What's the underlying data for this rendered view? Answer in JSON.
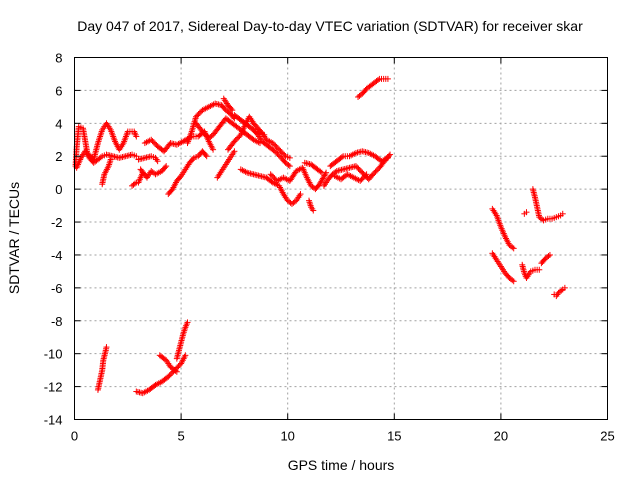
{
  "chart_data": {
    "type": "scatter",
    "title": "Day 047 of 2017, Sidereal Day-to-day VTEC variation (SDTVAR) for receiver skar",
    "xlabel": "GPS time / hours",
    "ylabel": "SDTVAR / TECUs",
    "xlim": [
      0,
      25
    ],
    "ylim": [
      -14,
      8
    ],
    "xticks": [
      "0",
      "5",
      "10",
      "15",
      "20",
      "25"
    ],
    "yticks": [
      "-14",
      "-12",
      "-10",
      "-8",
      "-6",
      "-4",
      "-2",
      "0",
      "2",
      "4",
      "6",
      "8"
    ],
    "grid": true,
    "marker": "+",
    "color": "#ff0000",
    "series": [
      {
        "segments": [
          [
            [
              0.05,
              1.4
            ],
            [
              0.1,
              2.5
            ],
            [
              0.2,
              3.8
            ],
            [
              0.4,
              3.7
            ],
            [
              0.6,
              2.2
            ],
            [
              0.9,
              1.8
            ],
            [
              1.1,
              2.8
            ],
            [
              1.3,
              3.6
            ],
            [
              1.5,
              4.0
            ],
            [
              1.7,
              3.6
            ],
            [
              1.9,
              2.9
            ],
            [
              2.1,
              2.4
            ],
            [
              2.3,
              2.8
            ],
            [
              2.5,
              3.5
            ],
            [
              2.8,
              3.5
            ],
            [
              2.9,
              3.2
            ]
          ],
          [
            [
              0.1,
              1.3
            ],
            [
              0.3,
              1.9
            ],
            [
              0.5,
              2.3
            ],
            [
              0.7,
              1.9
            ],
            [
              0.9,
              1.6
            ],
            [
              1.1,
              1.8
            ],
            [
              1.3,
              2.0
            ],
            [
              1.5,
              2.1
            ],
            [
              1.8,
              2.0
            ],
            [
              2.1,
              1.9
            ],
            [
              2.4,
              2.0
            ],
            [
              2.7,
              2.1
            ],
            [
              2.9,
              2.0
            ]
          ],
          [
            [
              1.3,
              0.3
            ],
            [
              1.4,
              0.9
            ],
            [
              1.6,
              1.4
            ],
            [
              1.7,
              1.8
            ]
          ],
          [
            [
              2.7,
              0.2
            ],
            [
              2.9,
              0.4
            ]
          ],
          [
            [
              3.0,
              1.8
            ],
            [
              3.3,
              1.9
            ],
            [
              3.6,
              2.0
            ],
            [
              3.8,
              1.9
            ],
            [
              3.9,
              1.7
            ]
          ],
          [
            [
              3.1,
              1.2
            ],
            [
              3.4,
              0.7
            ],
            [
              3.6,
              1.1
            ],
            [
              3.8,
              0.9
            ],
            [
              4.1,
              1.1
            ],
            [
              4.3,
              1.4
            ]
          ],
          [
            [
              3.3,
              2.8
            ],
            [
              3.6,
              3.0
            ],
            [
              3.9,
              2.6
            ],
            [
              4.2,
              2.3
            ],
            [
              4.5,
              2.8
            ],
            [
              4.8,
              2.7
            ],
            [
              5.1,
              2.9
            ],
            [
              5.5,
              3.2
            ],
            [
              5.8,
              3.2
            ],
            [
              6.1,
              3.5
            ],
            [
              6.3,
              2.9
            ],
            [
              6.5,
              2.4
            ]
          ],
          [
            [
              3.0,
              0.4
            ],
            [
              3.1,
              0.7
            ],
            [
              3.2,
              1.0
            ]
          ],
          [
            [
              4.4,
              -0.3
            ],
            [
              4.6,
              0.0
            ],
            [
              4.8,
              0.5
            ],
            [
              5.0,
              0.8
            ],
            [
              5.2,
              1.2
            ],
            [
              5.4,
              1.6
            ],
            [
              5.6,
              1.9
            ],
            [
              5.8,
              2.0
            ],
            [
              6.0,
              2.3
            ],
            [
              6.2,
              2.0
            ]
          ],
          [
            [
              5.3,
              2.8
            ],
            [
              5.5,
              3.5
            ],
            [
              5.7,
              4.4
            ],
            [
              6.0,
              4.8
            ],
            [
              6.3,
              5.0
            ],
            [
              6.6,
              5.2
            ],
            [
              6.9,
              5.1
            ],
            [
              7.1,
              4.8
            ],
            [
              7.3,
              4.6
            ],
            [
              7.5,
              4.3
            ]
          ],
          [
            [
              5.7,
              4.0
            ],
            [
              6.0,
              3.5
            ],
            [
              6.3,
              3.1
            ],
            [
              6.5,
              3.3
            ],
            [
              6.8,
              3.8
            ],
            [
              7.1,
              4.3
            ],
            [
              7.4,
              4.0
            ],
            [
              7.8,
              3.6
            ],
            [
              8.1,
              3.3
            ],
            [
              8.4,
              3.0
            ],
            [
              8.7,
              2.8
            ]
          ],
          [
            [
              6.7,
              0.7
            ],
            [
              6.9,
              1.1
            ],
            [
              7.1,
              1.5
            ],
            [
              7.3,
              1.9
            ],
            [
              7.5,
              2.3
            ]
          ],
          [
            [
              7.0,
              5.5
            ],
            [
              7.2,
              5.1
            ],
            [
              7.4,
              4.8
            ]
          ],
          [
            [
              7.2,
              2.4
            ],
            [
              7.5,
              2.9
            ],
            [
              7.8,
              3.3
            ],
            [
              8.0,
              3.9
            ],
            [
              8.2,
              4.4
            ],
            [
              8.4,
              4.0
            ],
            [
              8.6,
              3.7
            ],
            [
              8.8,
              3.4
            ],
            [
              9.0,
              3.0
            ],
            [
              9.3,
              2.8
            ],
            [
              9.6,
              2.4
            ],
            [
              9.9,
              2.0
            ],
            [
              10.1,
              1.9
            ]
          ],
          [
            [
              7.5,
              4.5
            ],
            [
              7.8,
              4.2
            ],
            [
              8.1,
              3.9
            ],
            [
              8.4,
              3.6
            ],
            [
              8.6,
              3.3
            ],
            [
              8.8,
              2.9
            ],
            [
              9.1,
              2.6
            ],
            [
              9.4,
              2.3
            ],
            [
              9.7,
              1.9
            ],
            [
              9.9,
              1.6
            ],
            [
              10.1,
              1.4
            ]
          ],
          [
            [
              7.8,
              1.2
            ],
            [
              8.1,
              1.0
            ],
            [
              8.4,
              0.9
            ],
            [
              8.7,
              0.8
            ],
            [
              9.0,
              0.7
            ],
            [
              9.3,
              0.4
            ],
            [
              9.6,
              0.2
            ],
            [
              9.8,
              -0.3
            ],
            [
              10.0,
              -0.7
            ],
            [
              10.2,
              -0.9
            ],
            [
              10.4,
              -0.7
            ],
            [
              10.6,
              -0.3
            ]
          ],
          [
            [
              8.5,
              3.5
            ],
            [
              8.7,
              3.4
            ],
            [
              8.9,
              3.3
            ]
          ],
          [
            [
              9.2,
              0.9
            ],
            [
              9.5,
              0.5
            ],
            [
              9.8,
              0.7
            ],
            [
              10.1,
              0.5
            ],
            [
              10.4,
              1.1
            ],
            [
              10.7,
              1.3
            ],
            [
              10.9,
              0.7
            ],
            [
              11.1,
              0.2
            ],
            [
              11.3,
              0.0
            ],
            [
              11.5,
              0.3
            ],
            [
              11.8,
              1.0
            ]
          ],
          [
            [
              10.8,
              1.6
            ],
            [
              11.1,
              1.5
            ],
            [
              11.4,
              1.2
            ],
            [
              11.6,
              1.0
            ]
          ],
          [
            [
              11.0,
              -0.7
            ],
            [
              11.1,
              -1.1
            ],
            [
              11.2,
              -1.3
            ]
          ],
          [
            [
              11.7,
              0.2
            ],
            [
              11.9,
              0.6
            ],
            [
              12.1,
              0.9
            ],
            [
              12.3,
              1.1
            ],
            [
              12.6,
              1.2
            ],
            [
              12.9,
              1.3
            ],
            [
              13.2,
              1.4
            ],
            [
              13.5,
              1.0
            ],
            [
              13.8,
              0.6
            ],
            [
              14.0,
              0.9
            ],
            [
              14.3,
              1.3
            ],
            [
              14.6,
              1.8
            ],
            [
              14.8,
              2.1
            ]
          ],
          [
            [
              12.0,
              1.4
            ],
            [
              12.3,
              1.7
            ],
            [
              12.6,
              2.0
            ],
            [
              12.9,
              2.0
            ],
            [
              13.2,
              2.2
            ],
            [
              13.5,
              2.3
            ],
            [
              13.8,
              2.2
            ],
            [
              14.1,
              2.0
            ],
            [
              14.4,
              1.7
            ],
            [
              14.7,
              1.9
            ]
          ],
          [
            [
              12.2,
              0.8
            ],
            [
              12.5,
              0.6
            ],
            [
              12.8,
              0.9
            ],
            [
              13.1,
              0.7
            ],
            [
              13.4,
              0.5
            ],
            [
              13.7,
              0.9
            ]
          ],
          [
            [
              13.3,
              5.6
            ],
            [
              13.5,
              5.8
            ],
            [
              13.7,
              6.1
            ],
            [
              13.9,
              6.3
            ],
            [
              14.1,
              6.5
            ],
            [
              14.3,
              6.7
            ],
            [
              14.5,
              6.7
            ],
            [
              14.7,
              6.7
            ]
          ],
          [
            [
              19.6,
              -1.2
            ],
            [
              19.8,
              -1.6
            ],
            [
              20.0,
              -2.3
            ],
            [
              20.2,
              -2.9
            ],
            [
              20.4,
              -3.4
            ],
            [
              20.6,
              -3.6
            ]
          ],
          [
            [
              19.6,
              -3.9
            ],
            [
              19.8,
              -4.3
            ],
            [
              20.0,
              -4.7
            ],
            [
              20.2,
              -5.1
            ],
            [
              20.4,
              -5.4
            ],
            [
              20.6,
              -5.6
            ]
          ],
          [
            [
              21.0,
              -4.6
            ],
            [
              21.1,
              -5.1
            ],
            [
              21.2,
              -5.4
            ],
            [
              21.4,
              -5.0
            ],
            [
              21.6,
              -4.9
            ],
            [
              21.8,
              -4.9
            ]
          ],
          [
            [
              21.1,
              -1.5
            ],
            [
              21.2,
              -1.4
            ]
          ],
          [
            [
              21.5,
              0.0
            ],
            [
              21.6,
              -0.5
            ],
            [
              21.7,
              -1.1
            ],
            [
              21.8,
              -1.7
            ],
            [
              22.0,
              -1.9
            ],
            [
              22.2,
              -1.8
            ],
            [
              22.4,
              -1.8
            ],
            [
              22.6,
              -1.7
            ],
            [
              22.8,
              -1.6
            ],
            [
              22.9,
              -1.5
            ]
          ],
          [
            [
              21.9,
              -4.5
            ],
            [
              22.1,
              -4.2
            ],
            [
              22.3,
              -4.0
            ]
          ],
          [
            [
              22.5,
              -6.4
            ],
            [
              22.6,
              -6.5
            ],
            [
              22.7,
              -6.3
            ],
            [
              22.9,
              -6.1
            ],
            [
              23.0,
              -6.0
            ]
          ],
          [
            [
              1.1,
              -12.2
            ],
            [
              1.2,
              -11.6
            ],
            [
              1.3,
              -11.0
            ],
            [
              1.35,
              -10.4
            ],
            [
              1.45,
              -9.9
            ],
            [
              1.5,
              -9.6
            ]
          ],
          [
            [
              2.9,
              -12.3
            ],
            [
              3.2,
              -12.4
            ],
            [
              3.5,
              -12.2
            ],
            [
              3.8,
              -11.9
            ],
            [
              4.1,
              -11.7
            ],
            [
              4.4,
              -11.4
            ],
            [
              4.7,
              -11.0
            ],
            [
              5.0,
              -10.6
            ],
            [
              5.2,
              -10.1
            ]
          ],
          [
            [
              4.0,
              -10.1
            ],
            [
              4.3,
              -10.4
            ],
            [
              4.5,
              -10.8
            ],
            [
              4.8,
              -11.1
            ]
          ],
          [
            [
              4.8,
              -10.3
            ],
            [
              4.9,
              -9.8
            ],
            [
              5.0,
              -9.3
            ],
            [
              5.1,
              -8.8
            ],
            [
              5.2,
              -8.4
            ],
            [
              5.3,
              -8.1
            ]
          ]
        ]
      }
    ]
  }
}
